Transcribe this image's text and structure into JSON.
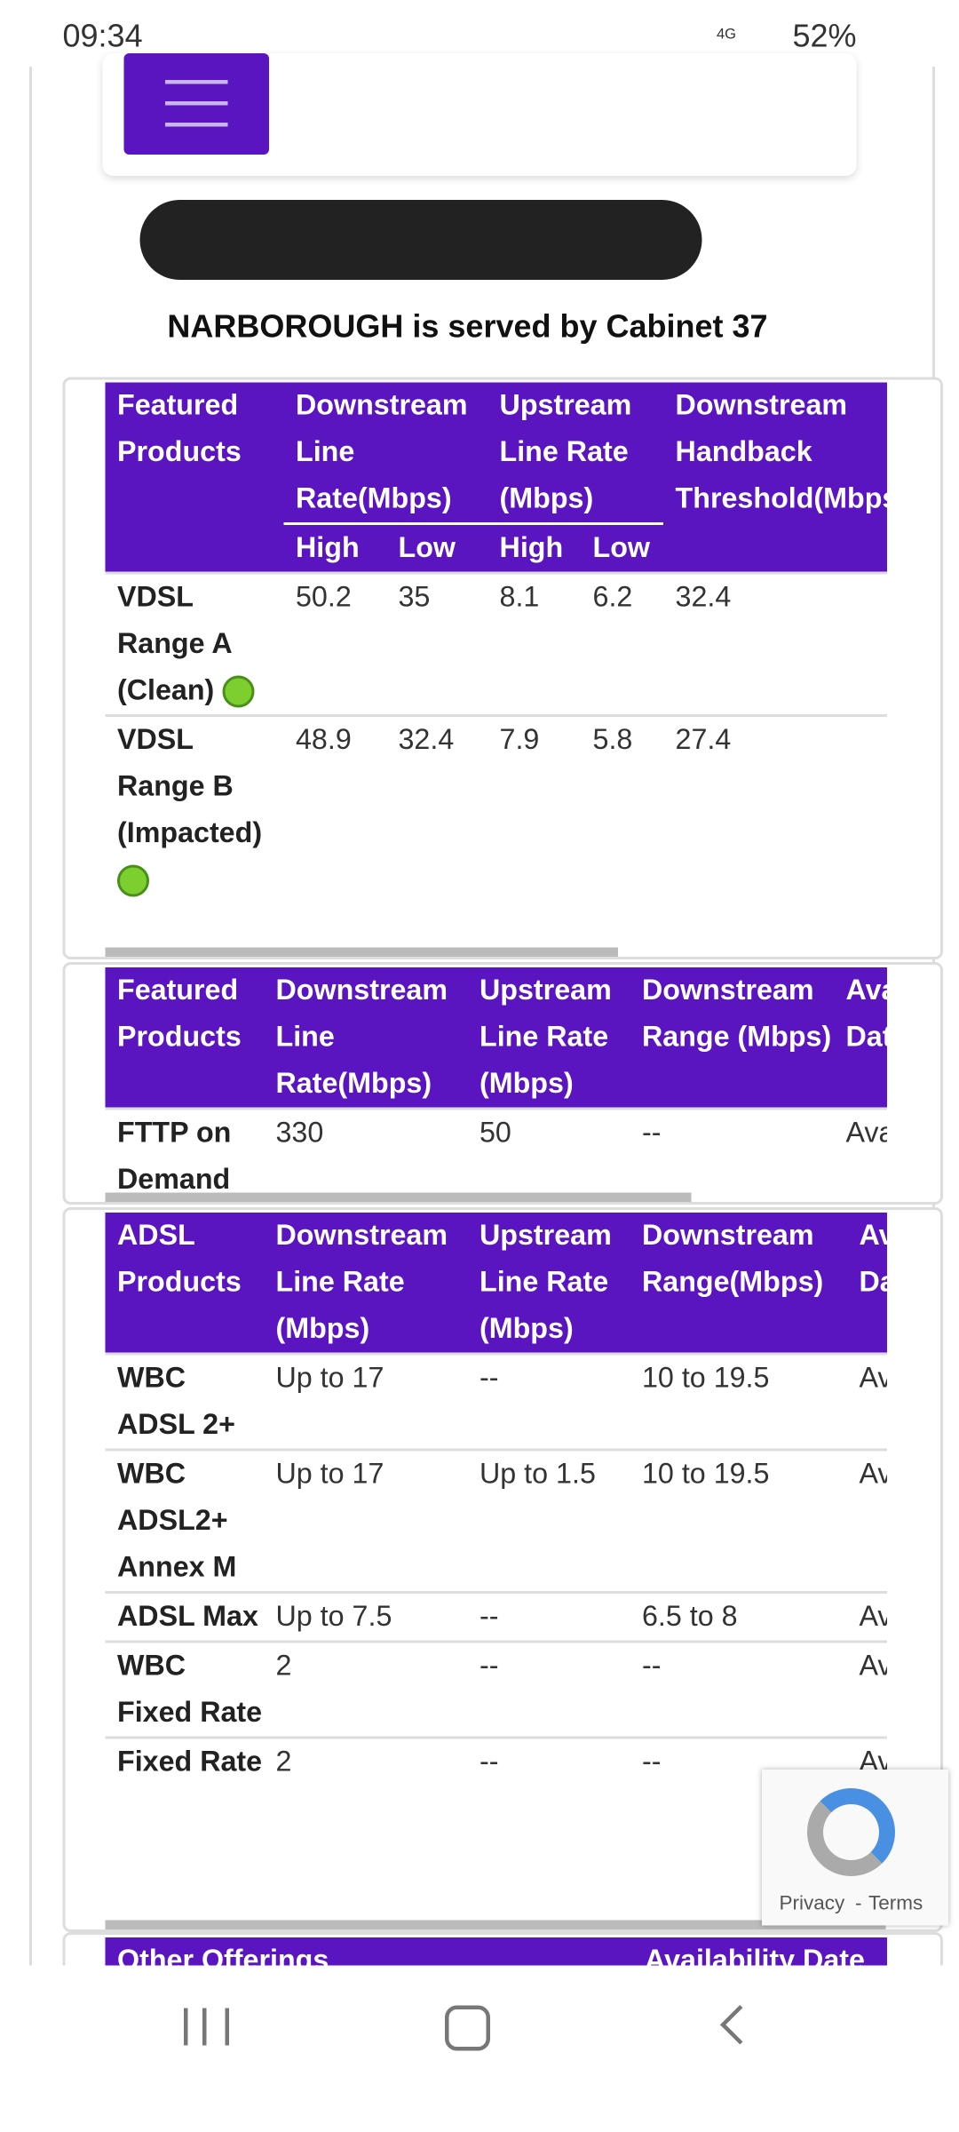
{
  "status": {
    "time": "09:34",
    "network": "4G",
    "battery": "52%"
  },
  "header": {
    "cabinet": "NARBOROUGH is served by Cabinet 37"
  },
  "vdsl": {
    "headers": [
      "Featured Products",
      "Downstream Line Rate(Mbps)",
      "Upstream Line Rate (Mbps)",
      "Downstream Handback Threshold(Mbps)"
    ],
    "subheaders": [
      "High",
      "Low",
      "High",
      "Low"
    ],
    "rows": [
      [
        "VDSL Range A (Clean)",
        "50.2",
        "35",
        "8.1",
        "6.2",
        "32.4"
      ],
      [
        "VDSL Range B (Impacted)",
        "48.9",
        "32.4",
        "7.9",
        "5.8",
        "27.4"
      ]
    ]
  },
  "fttp": {
    "headers": [
      "Featured Products",
      "Downstream Line Rate(Mbps)",
      "Upstream Line Rate (Mbps)",
      "Downstream Range (Mbps)",
      "Availability Date"
    ],
    "rows": [
      [
        "FTTP on Demand",
        "330",
        "50",
        "--",
        "Available"
      ]
    ]
  },
  "adsl": {
    "headers": [
      "ADSL Products",
      "Downstream Line Rate (Mbps)",
      "Upstream Line Rate (Mbps)",
      "Downstream Range(Mbps)",
      "Availability Date"
    ],
    "rows": [
      [
        "WBC ADSL 2+",
        "Up to 17",
        "--",
        "10 to 19.5",
        "Available"
      ],
      [
        "WBC ADSL2+ Annex M",
        "Up to 17",
        "Up to 1.5",
        "10 to 19.5",
        "Available"
      ],
      [
        "ADSL Max",
        "Up to 7.5",
        "--",
        "6.5 to 8",
        "Available"
      ],
      [
        "WBC Fixed Rate",
        "2",
        "--",
        "--",
        "Available"
      ],
      [
        "Fixed Rate",
        "2",
        "--",
        "--",
        "Available"
      ]
    ]
  },
  "other": {
    "headers": [
      "Other Offerings",
      "Availability Date"
    ]
  },
  "recaptcha": {
    "privacy": "Privacy",
    "terms": "Terms"
  }
}
